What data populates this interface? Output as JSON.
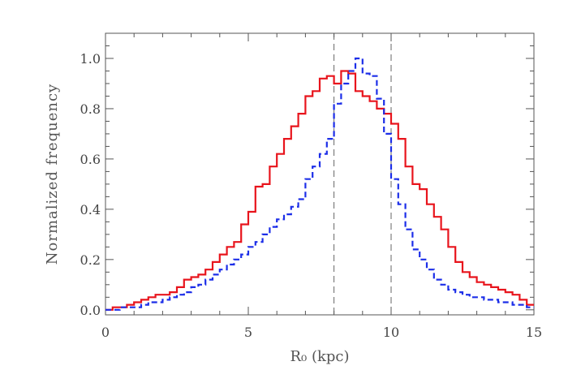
{
  "chart_data": {
    "type": "line",
    "title": "",
    "xlabel": "R₀ (kpc)",
    "ylabel": "Normalized frequency",
    "xlim": [
      0,
      15
    ],
    "ylim": [
      -0.02,
      1.1
    ],
    "grid": false,
    "legend": "none",
    "x_ticks": [
      "0",
      "5",
      "10",
      "15"
    ],
    "y_ticks": [
      "0.0",
      "0.2",
      "0.4",
      "0.6",
      "0.8",
      "1.0"
    ],
    "reference_lines_x": [
      8.0,
      10.0
    ],
    "bin_edges": [
      0.0,
      0.25,
      0.5,
      0.75,
      1.0,
      1.25,
      1.5,
      1.75,
      2.0,
      2.25,
      2.5,
      2.75,
      3.0,
      3.25,
      3.5,
      3.75,
      4.0,
      4.25,
      4.5,
      4.75,
      5.0,
      5.25,
      5.5,
      5.75,
      6.0,
      6.25,
      6.5,
      6.75,
      7.0,
      7.25,
      7.5,
      7.75,
      8.0,
      8.25,
      8.5,
      8.75,
      9.0,
      9.25,
      9.5,
      9.75,
      10.0,
      10.25,
      10.5,
      10.75,
      11.0,
      11.25,
      11.5,
      11.75,
      12.0,
      12.25,
      12.5,
      12.75,
      13.0,
      13.25,
      13.5,
      13.75,
      14.0,
      14.25,
      14.5,
      14.75,
      15.0
    ],
    "series": [
      {
        "color": "#e8141c",
        "style": "solid",
        "values": [
          0.0,
          0.01,
          0.01,
          0.02,
          0.03,
          0.04,
          0.05,
          0.06,
          0.06,
          0.07,
          0.09,
          0.12,
          0.13,
          0.14,
          0.16,
          0.19,
          0.22,
          0.25,
          0.27,
          0.34,
          0.39,
          0.49,
          0.5,
          0.57,
          0.62,
          0.68,
          0.73,
          0.78,
          0.85,
          0.87,
          0.92,
          0.93,
          0.9,
          0.95,
          0.94,
          0.87,
          0.85,
          0.83,
          0.8,
          0.78,
          0.74,
          0.68,
          0.57,
          0.5,
          0.48,
          0.42,
          0.37,
          0.32,
          0.25,
          0.19,
          0.15,
          0.13,
          0.11,
          0.1,
          0.09,
          0.08,
          0.07,
          0.06,
          0.04,
          0.02
        ]
      },
      {
        "color": "#1c2ee8",
        "style": "dashed",
        "values": [
          0.0,
          0.0,
          0.01,
          0.01,
          0.01,
          0.02,
          0.03,
          0.03,
          0.04,
          0.05,
          0.06,
          0.07,
          0.09,
          0.1,
          0.12,
          0.14,
          0.16,
          0.18,
          0.2,
          0.22,
          0.25,
          0.27,
          0.3,
          0.33,
          0.36,
          0.38,
          0.41,
          0.44,
          0.52,
          0.57,
          0.62,
          0.68,
          0.82,
          0.9,
          0.95,
          1.0,
          0.94,
          0.93,
          0.84,
          0.7,
          0.52,
          0.42,
          0.32,
          0.24,
          0.2,
          0.16,
          0.12,
          0.1,
          0.08,
          0.07,
          0.06,
          0.05,
          0.05,
          0.04,
          0.04,
          0.03,
          0.03,
          0.02,
          0.02,
          0.01
        ]
      }
    ]
  }
}
